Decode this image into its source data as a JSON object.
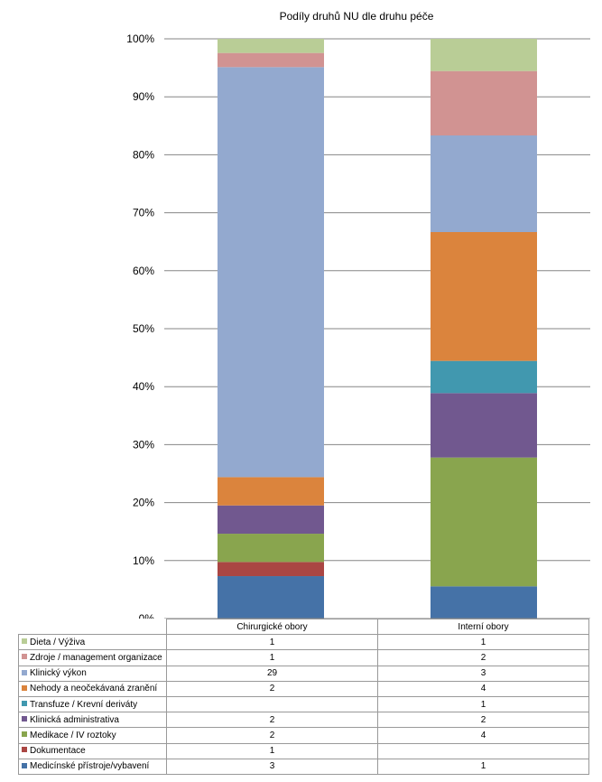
{
  "chart_data": {
    "type": "bar",
    "stacked": true,
    "normalized": true,
    "title": "Podíly druhů NU  dle druhu péče",
    "categories": [
      "Chirurgické obory",
      "Interní obory"
    ],
    "ylim": [
      0,
      100
    ],
    "yticks": [
      "0%",
      "10%",
      "20%",
      "30%",
      "40%",
      "50%",
      "60%",
      "70%",
      "80%",
      "90%",
      "100%"
    ],
    "grid": true,
    "legend_position": "table-below",
    "series": [
      {
        "name": "Medicínské přístroje/vybavení",
        "color": "#4572A7",
        "values": [
          3,
          1
        ]
      },
      {
        "name": "Dokumentace",
        "color": "#AA4643",
        "values": [
          1,
          null
        ]
      },
      {
        "name": "Medikace / IV roztoky",
        "color": "#89A54E",
        "values": [
          2,
          4
        ]
      },
      {
        "name": "Klinická administrativa",
        "color": "#71588F",
        "values": [
          2,
          2
        ]
      },
      {
        "name": "Transfuze / Krevní deriváty",
        "color": "#4198AF",
        "values": [
          null,
          1
        ]
      },
      {
        "name": "Nehody a neočekávaná zranění",
        "color": "#DB843D",
        "values": [
          2,
          4
        ]
      },
      {
        "name": "Klinický výkon",
        "color": "#93A9CF",
        "values": [
          29,
          3
        ]
      },
      {
        "name": "Zdroje / management organizace",
        "color": "#D19392",
        "values": [
          1,
          2
        ]
      },
      {
        "name": "Dieta / Výživa",
        "color": "#B9CD96",
        "values": [
          1,
          1
        ]
      }
    ]
  }
}
